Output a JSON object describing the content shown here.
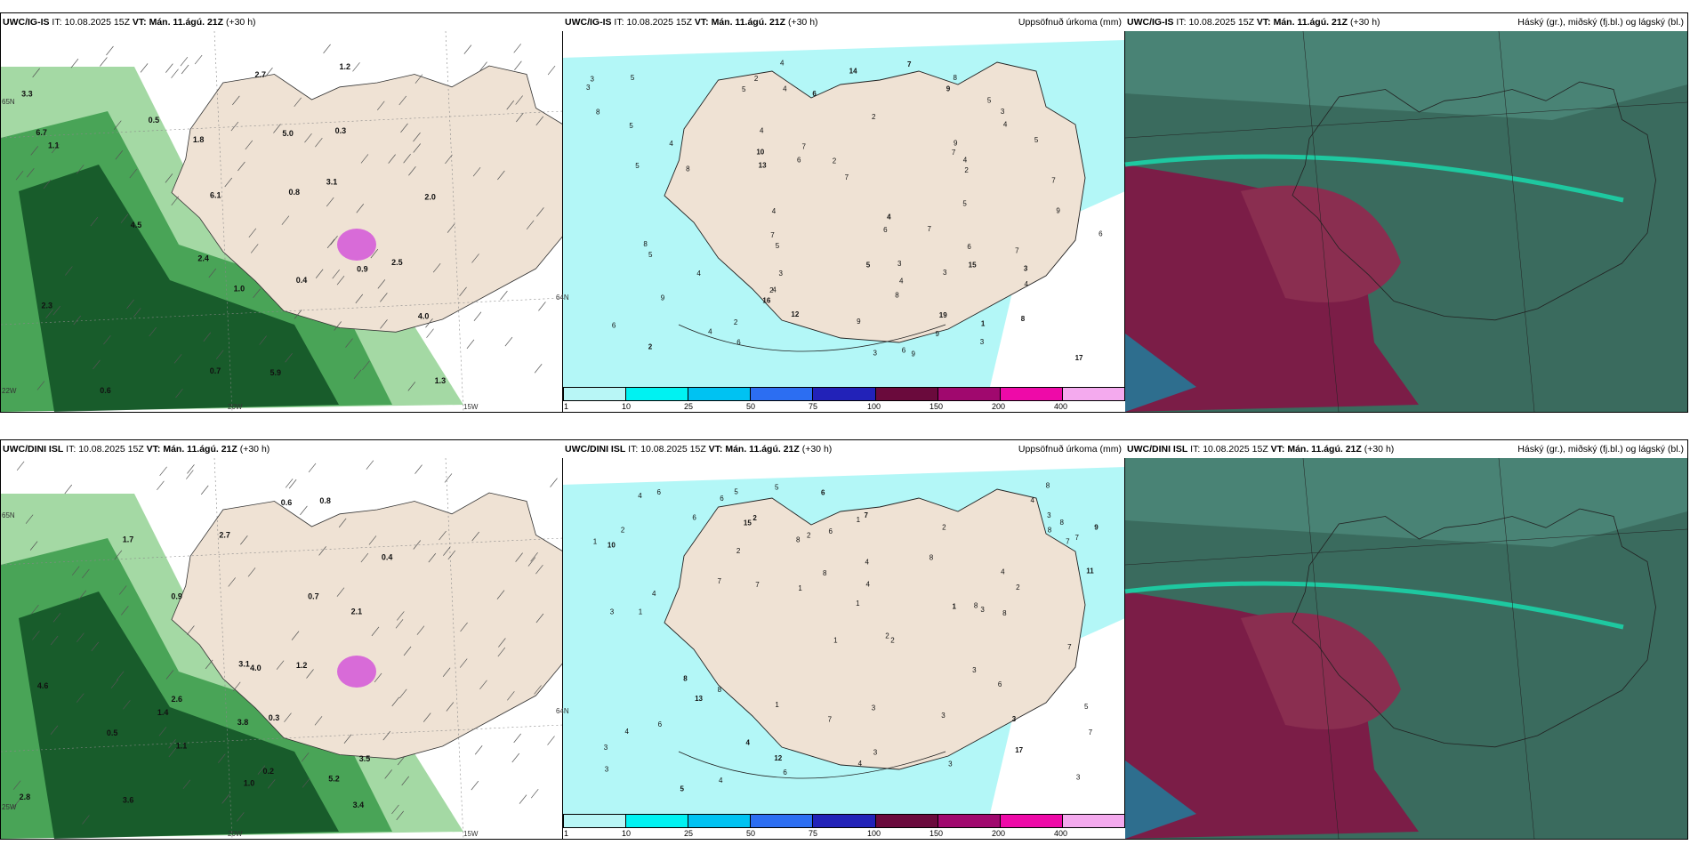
{
  "rows": [
    {
      "model": "UWC/IG-IS",
      "it_label": "IT:",
      "it_value": "10.08.2025 15Z",
      "vt_label": "VT:",
      "vt_value": "Mán. 11.ágú. 21Z",
      "lead": "(+30 h)",
      "middle_title": "Uppsöfnuð úrkoma (mm)",
      "right_title": "Háský (gr.), miðský (fj.bl.) og lágský (bl.)",
      "left_values": [
        "0.7",
        "0.8",
        "0.9",
        "1.0",
        "1.1",
        "2.0",
        "3.3",
        "6.7",
        "6.1",
        "4.5",
        "2.5",
        "5.9",
        "5.0",
        "4.0",
        "3.1",
        "2.4",
        "2.7",
        "0.6",
        "1.3",
        "2.3",
        "0.5",
        "0.4",
        "0.3",
        "1.8",
        "1.2"
      ],
      "middle_values": [
        "2",
        "3",
        "4",
        "5",
        "6",
        "7",
        "8",
        "9",
        "1",
        "16",
        "17",
        "13",
        "12",
        "14",
        "19",
        "10",
        "15"
      ],
      "coords": [
        "65N",
        "64N",
        "22W",
        "20W",
        "15W"
      ]
    },
    {
      "model": "UWC/DINI ISL",
      "it_label": "IT:",
      "it_value": "10.08.2025 15Z",
      "vt_label": "VT:",
      "vt_value": "Mán. 11.ágú. 21Z",
      "lead": "(+30 h)",
      "middle_title": "Uppsöfnuð úrkoma (mm)",
      "right_title": "Háský (gr.), miðský (fj.bl.) og lágský (bl.)",
      "left_values": [
        "0.7",
        "0.6",
        "1.1",
        "0.5",
        "2.6",
        "3.5",
        "0.8",
        "1.0",
        "3.4",
        "4.0",
        "2.7",
        "1.2",
        "4.6",
        "3.8",
        "5.2",
        "3.1",
        "2.8",
        "0.9",
        "1.4",
        "1.7",
        "0.4",
        "2.1",
        "0.3",
        "0.2",
        "3.6"
      ],
      "middle_values": [
        "2",
        "3",
        "4",
        "5",
        "6",
        "7",
        "1",
        "8",
        "9",
        "13",
        "12",
        "11",
        "10",
        "15",
        "17"
      ],
      "coords": [
        "65N",
        "64N",
        "25W",
        "20W",
        "15W"
      ]
    }
  ],
  "legend": {
    "ticks": [
      "1",
      "10",
      "25",
      "50",
      "75",
      "100",
      "150",
      "200",
      "400"
    ],
    "colors": [
      "#b8f6f6",
      "#00f2f2",
      "#00c2f2",
      "#2c6ef2",
      "#2222b8",
      "#6a0a3c",
      "#a0086e",
      "#ee0aa8",
      "#f4aaee"
    ]
  },
  "colors": {
    "land": "#efe2d4",
    "precip_light": "#b3f7f7",
    "cloud_high": "#7b1d47",
    "cloud_mid": "#3a6b5e",
    "cloud_low": "#2e6e8e",
    "green_dark": "#0d4a20",
    "green_mid": "#3a9a4a",
    "green_light": "#9ad59a"
  }
}
